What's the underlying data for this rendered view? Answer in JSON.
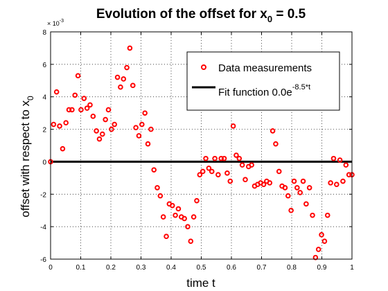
{
  "chart_data": {
    "type": "scatter",
    "title": {
      "prefix": "Evolution of the offset for x",
      "subscript": "0",
      "suffix": " = 0.5"
    },
    "xlabel": "time t",
    "ylabel": {
      "prefix": "offset with respect to x",
      "subscript": "0"
    },
    "xlim": [
      0,
      1
    ],
    "ylim": [
      -6,
      8
    ],
    "y_scale_exponent": {
      "base": "× 10",
      "exponent": "-3"
    },
    "x_ticks": [
      {
        "value": 0,
        "label": "0"
      },
      {
        "value": 0.1,
        "label": "0.1"
      },
      {
        "value": 0.2,
        "label": "0.2"
      },
      {
        "value": 0.3,
        "label": "0.3"
      },
      {
        "value": 0.4,
        "label": "0.4"
      },
      {
        "value": 0.5,
        "label": "0.5"
      },
      {
        "value": 0.6,
        "label": "0.6"
      },
      {
        "value": 0.7,
        "label": "0.7"
      },
      {
        "value": 0.8,
        "label": "0.8"
      },
      {
        "value": 0.9,
        "label": "0.9"
      },
      {
        "value": 1,
        "label": "1"
      }
    ],
    "y_ticks": [
      {
        "value": -6,
        "label": "-6"
      },
      {
        "value": -4,
        "label": "-4"
      },
      {
        "value": -2,
        "label": "-2"
      },
      {
        "value": 0,
        "label": "0"
      },
      {
        "value": 2,
        "label": "2"
      },
      {
        "value": 4,
        "label": "4"
      },
      {
        "value": 6,
        "label": "6"
      },
      {
        "value": 8,
        "label": "8"
      }
    ],
    "grid": true,
    "legend_position": "top-right",
    "series": [
      {
        "name": "Data measurements",
        "type": "scatter",
        "color": "#ff0000",
        "marker": "circle",
        "x": [
          0.0,
          0.01,
          0.02,
          0.03,
          0.04,
          0.051,
          0.061,
          0.071,
          0.081,
          0.091,
          0.101,
          0.111,
          0.121,
          0.131,
          0.141,
          0.152,
          0.162,
          0.172,
          0.182,
          0.192,
          0.202,
          0.212,
          0.222,
          0.232,
          0.242,
          0.253,
          0.263,
          0.273,
          0.283,
          0.293,
          0.303,
          0.313,
          0.323,
          0.333,
          0.343,
          0.354,
          0.364,
          0.374,
          0.384,
          0.394,
          0.404,
          0.414,
          0.424,
          0.434,
          0.444,
          0.455,
          0.465,
          0.475,
          0.485,
          0.495,
          0.505,
          0.515,
          0.525,
          0.535,
          0.545,
          0.556,
          0.566,
          0.576,
          0.586,
          0.596,
          0.606,
          0.616,
          0.626,
          0.636,
          0.646,
          0.657,
          0.667,
          0.677,
          0.687,
          0.697,
          0.707,
          0.717,
          0.727,
          0.737,
          0.747,
          0.758,
          0.768,
          0.778,
          0.788,
          0.798,
          0.808,
          0.818,
          0.828,
          0.838,
          0.848,
          0.859,
          0.869,
          0.879,
          0.889,
          0.899,
          0.909,
          0.919,
          0.929,
          0.939,
          0.949,
          0.96,
          0.97,
          0.98,
          0.99,
          1.0
        ],
        "y": [
          0.0,
          2.3,
          4.3,
          2.2,
          0.8,
          2.4,
          3.2,
          3.2,
          4.1,
          5.3,
          3.2,
          3.9,
          3.3,
          3.5,
          2.8,
          1.9,
          1.4,
          1.7,
          2.6,
          3.2,
          2.0,
          2.3,
          5.2,
          4.6,
          5.1,
          5.8,
          7.0,
          4.7,
          2.1,
          1.6,
          2.3,
          3.0,
          1.1,
          2.0,
          -0.5,
          -1.6,
          -2.1,
          -3.4,
          -4.6,
          -2.6,
          -2.7,
          -3.3,
          -2.9,
          -3.4,
          -3.5,
          -4.0,
          -4.9,
          -3.4,
          -2.4,
          -0.8,
          -0.6,
          0.2,
          -0.4,
          -0.6,
          0.2,
          -0.8,
          0.2,
          0.2,
          -0.7,
          -1.2,
          2.2,
          0.4,
          0.2,
          -0.2,
          -1.1,
          -0.3,
          -0.2,
          -1.5,
          -1.4,
          -1.3,
          -1.4,
          -1.2,
          -1.3,
          1.9,
          1.1,
          -0.6,
          -1.5,
          -1.6,
          -2.1,
          -3.0,
          -1.2,
          -1.6,
          -1.9,
          -1.2,
          -2.6,
          -1.6,
          -3.3,
          -5.9,
          -5.4,
          -4.5,
          -4.9,
          -3.3,
          -1.3,
          0.2,
          -1.4,
          0.1,
          -1.2,
          -0.2,
          -0.8,
          -0.8
        ]
      },
      {
        "name": "Fit function 0.0e",
        "name_superscript": "-8.5*t",
        "type": "line",
        "color": "#000000",
        "x": [
          0,
          1
        ],
        "y": [
          0,
          0
        ]
      }
    ]
  }
}
